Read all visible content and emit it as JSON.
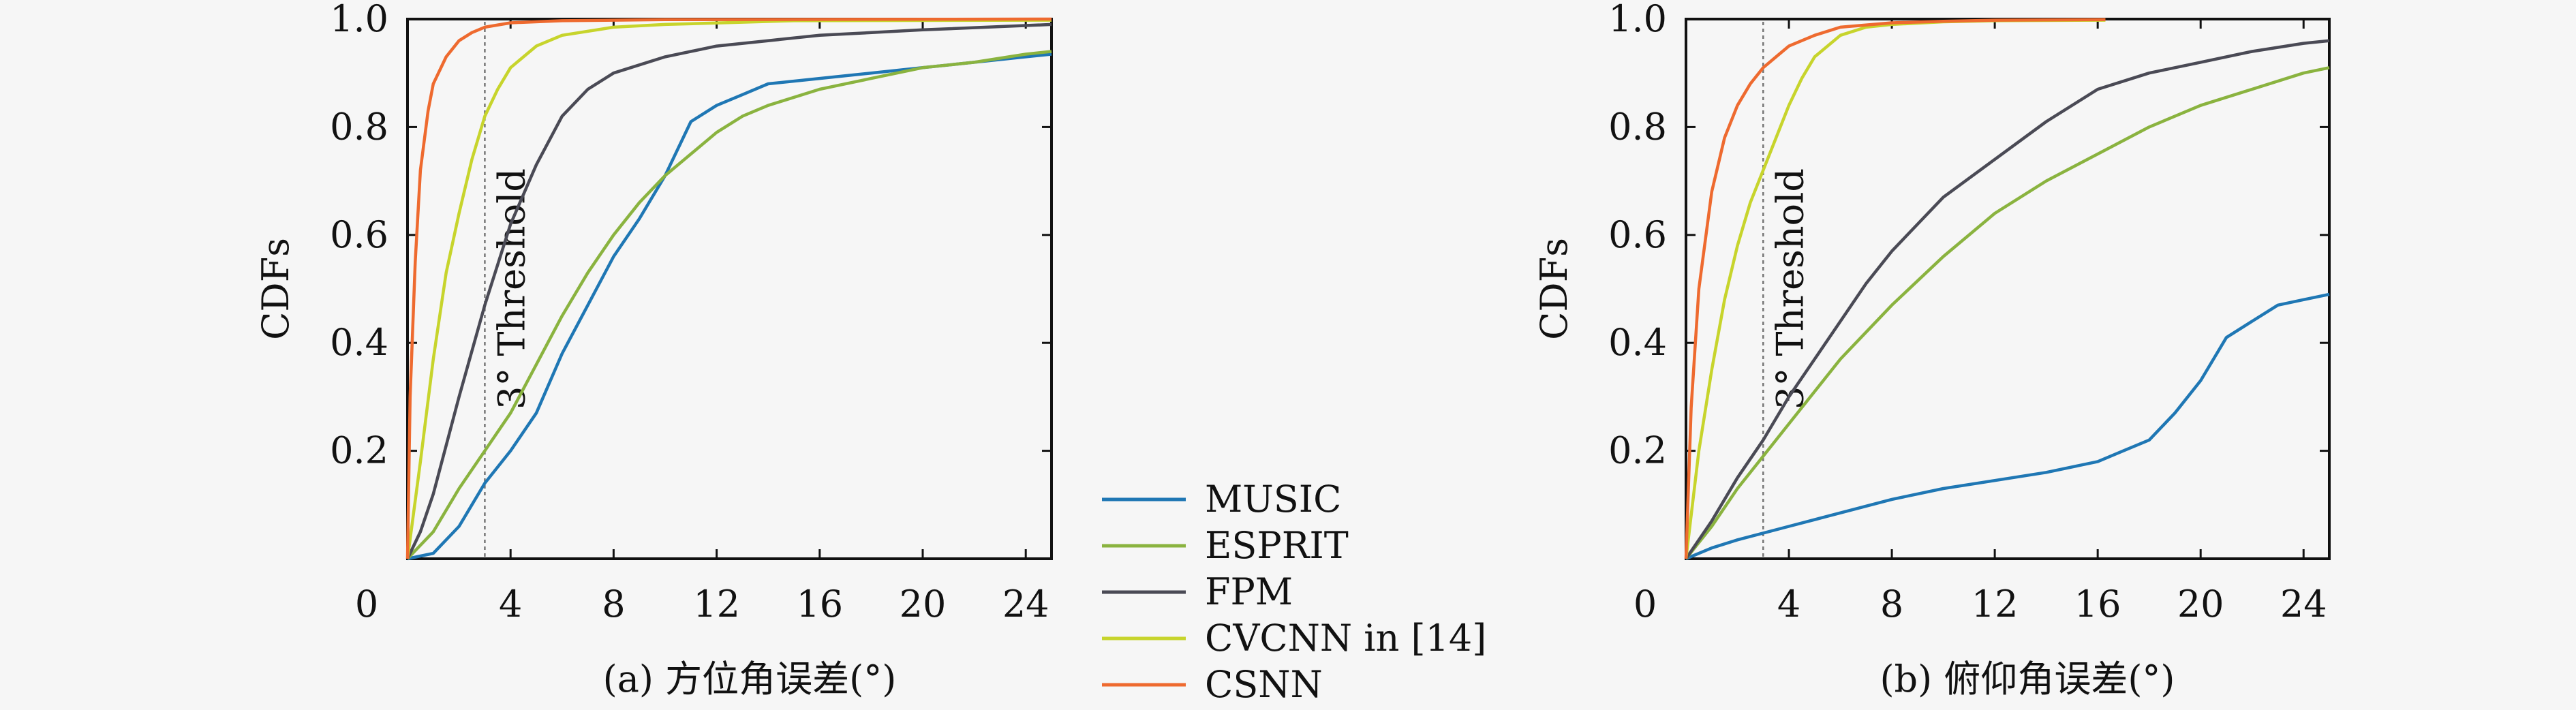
{
  "chart_data": [
    {
      "type": "line",
      "panel_caption": "(a) 方位角误差(°)",
      "xlabel": "",
      "ylabel": "CDFs",
      "annotation": "3° Threshold",
      "threshold_x": 3,
      "xlim": [
        0,
        25
      ],
      "ylim": [
        0,
        1
      ],
      "x_ticks": [
        "0",
        "4",
        "8",
        "12",
        "16",
        "20",
        "24"
      ],
      "y_ticks": [
        "0.2",
        "0.4",
        "0.6",
        "0.8",
        "1.0"
      ],
      "grid": false,
      "series": [
        {
          "name": "MUSIC",
          "color": "#1f77b4",
          "points": [
            [
              0,
              0
            ],
            [
              1,
              0.01
            ],
            [
              2,
              0.06
            ],
            [
              3,
              0.14
            ],
            [
              4,
              0.2
            ],
            [
              5,
              0.27
            ],
            [
              6,
              0.38
            ],
            [
              7,
              0.47
            ],
            [
              8,
              0.56
            ],
            [
              9,
              0.63
            ],
            [
              10,
              0.71
            ],
            [
              11,
              0.81
            ],
            [
              12,
              0.84
            ],
            [
              13,
              0.86
            ],
            [
              14,
              0.88
            ],
            [
              16,
              0.89
            ],
            [
              18,
              0.9
            ],
            [
              20,
              0.91
            ],
            [
              22,
              0.92
            ],
            [
              24,
              0.93
            ],
            [
              25,
              0.935
            ]
          ]
        },
        {
          "name": "ESPRIT",
          "color": "#8ab33f",
          "points": [
            [
              0,
              0
            ],
            [
              1,
              0.05
            ],
            [
              2,
              0.13
            ],
            [
              3,
              0.2
            ],
            [
              4,
              0.27
            ],
            [
              5,
              0.36
            ],
            [
              6,
              0.45
            ],
            [
              7,
              0.53
            ],
            [
              8,
              0.6
            ],
            [
              9,
              0.66
            ],
            [
              10,
              0.71
            ],
            [
              11,
              0.75
            ],
            [
              12,
              0.79
            ],
            [
              13,
              0.82
            ],
            [
              14,
              0.84
            ],
            [
              16,
              0.87
            ],
            [
              18,
              0.89
            ],
            [
              20,
              0.91
            ],
            [
              22,
              0.92
            ],
            [
              24,
              0.935
            ],
            [
              25,
              0.94
            ]
          ]
        },
        {
          "name": "FPM",
          "color": "#4a4a55",
          "points": [
            [
              0,
              0
            ],
            [
              0.5,
              0.05
            ],
            [
              1,
              0.12
            ],
            [
              2,
              0.3
            ],
            [
              3,
              0.47
            ],
            [
              4,
              0.62
            ],
            [
              5,
              0.73
            ],
            [
              6,
              0.82
            ],
            [
              7,
              0.87
            ],
            [
              8,
              0.9
            ],
            [
              10,
              0.93
            ],
            [
              12,
              0.95
            ],
            [
              14,
              0.96
            ],
            [
              16,
              0.97
            ],
            [
              20,
              0.98
            ],
            [
              25,
              0.99
            ]
          ]
        },
        {
          "name": "CVCNN in [14]",
          "color": "#c7d42c",
          "points": [
            [
              0,
              0
            ],
            [
              0.5,
              0.18
            ],
            [
              1,
              0.37
            ],
            [
              1.5,
              0.53
            ],
            [
              2,
              0.64
            ],
            [
              2.5,
              0.74
            ],
            [
              3,
              0.82
            ],
            [
              3.5,
              0.87
            ],
            [
              4,
              0.91
            ],
            [
              5,
              0.95
            ],
            [
              6,
              0.97
            ],
            [
              8,
              0.985
            ],
            [
              10,
              0.99
            ],
            [
              15,
              0.997
            ],
            [
              25,
              0.998
            ]
          ]
        },
        {
          "name": "CSNN",
          "color": "#ee6a2f",
          "points": [
            [
              0,
              0
            ],
            [
              0.1,
              0.3
            ],
            [
              0.3,
              0.55
            ],
            [
              0.5,
              0.72
            ],
            [
              0.8,
              0.83
            ],
            [
              1,
              0.88
            ],
            [
              1.5,
              0.93
            ],
            [
              2,
              0.96
            ],
            [
              2.5,
              0.975
            ],
            [
              3,
              0.985
            ],
            [
              4,
              0.993
            ],
            [
              6,
              0.997
            ],
            [
              10,
              0.999
            ],
            [
              25,
              1.0
            ]
          ]
        }
      ]
    },
    {
      "type": "line",
      "panel_caption": "(b) 俯仰角误差(°)",
      "xlabel": "",
      "ylabel": "CDFs",
      "annotation": "3° Threshold",
      "threshold_x": 3,
      "xlim": [
        0,
        25
      ],
      "ylim": [
        0,
        1
      ],
      "x_ticks": [
        "0",
        "4",
        "8",
        "12",
        "16",
        "20",
        "24"
      ],
      "y_ticks": [
        "0.2",
        "0.4",
        "0.6",
        "0.8",
        "1.0"
      ],
      "grid": false,
      "series": [
        {
          "name": "MUSIC",
          "color": "#1f77b4",
          "points": [
            [
              0,
              0
            ],
            [
              1,
              0.02
            ],
            [
              2,
              0.035
            ],
            [
              4,
              0.06
            ],
            [
              6,
              0.085
            ],
            [
              8,
              0.11
            ],
            [
              10,
              0.13
            ],
            [
              12,
              0.145
            ],
            [
              14,
              0.16
            ],
            [
              16,
              0.18
            ],
            [
              17,
              0.2
            ],
            [
              18,
              0.22
            ],
            [
              19,
              0.27
            ],
            [
              20,
              0.33
            ],
            [
              21,
              0.41
            ],
            [
              22,
              0.44
            ],
            [
              23,
              0.47
            ],
            [
              24,
              0.48
            ],
            [
              25,
              0.49
            ]
          ]
        },
        {
          "name": "ESPRIT",
          "color": "#8ab33f",
          "points": [
            [
              0,
              0
            ],
            [
              1,
              0.06
            ],
            [
              2,
              0.13
            ],
            [
              3,
              0.19
            ],
            [
              4,
              0.25
            ],
            [
              5,
              0.31
            ],
            [
              6,
              0.37
            ],
            [
              7,
              0.42
            ],
            [
              8,
              0.47
            ],
            [
              10,
              0.56
            ],
            [
              12,
              0.64
            ],
            [
              14,
              0.7
            ],
            [
              16,
              0.75
            ],
            [
              18,
              0.8
            ],
            [
              20,
              0.84
            ],
            [
              22,
              0.87
            ],
            [
              24,
              0.9
            ],
            [
              25,
              0.91
            ]
          ]
        },
        {
          "name": "FPM",
          "color": "#4a4a55",
          "points": [
            [
              0,
              0
            ],
            [
              1,
              0.07
            ],
            [
              2,
              0.15
            ],
            [
              3,
              0.22
            ],
            [
              4,
              0.3
            ],
            [
              5,
              0.37
            ],
            [
              6,
              0.44
            ],
            [
              7,
              0.51
            ],
            [
              8,
              0.57
            ],
            [
              9,
              0.62
            ],
            [
              10,
              0.67
            ],
            [
              12,
              0.74
            ],
            [
              14,
              0.81
            ],
            [
              16,
              0.87
            ],
            [
              18,
              0.9
            ],
            [
              20,
              0.92
            ],
            [
              22,
              0.94
            ],
            [
              24,
              0.955
            ],
            [
              25,
              0.96
            ]
          ]
        },
        {
          "name": "CVCNN in [14]",
          "color": "#c7d42c",
          "points": [
            [
              0,
              0
            ],
            [
              0.5,
              0.2
            ],
            [
              1,
              0.35
            ],
            [
              1.5,
              0.48
            ],
            [
              2,
              0.58
            ],
            [
              2.5,
              0.66
            ],
            [
              3,
              0.72
            ],
            [
              3.5,
              0.78
            ],
            [
              4,
              0.84
            ],
            [
              4.5,
              0.89
            ],
            [
              5,
              0.93
            ],
            [
              6,
              0.97
            ],
            [
              7,
              0.985
            ],
            [
              8,
              0.99
            ],
            [
              10,
              0.995
            ],
            [
              12,
              0.997
            ],
            [
              16.3,
              0.998
            ]
          ]
        },
        {
          "name": "CSNN",
          "color": "#ee6a2f",
          "points": [
            [
              0,
              0
            ],
            [
              0.2,
              0.28
            ],
            [
              0.5,
              0.5
            ],
            [
              1,
              0.68
            ],
            [
              1.5,
              0.78
            ],
            [
              2,
              0.84
            ],
            [
              2.5,
              0.88
            ],
            [
              3,
              0.91
            ],
            [
              3.5,
              0.93
            ],
            [
              4,
              0.95
            ],
            [
              5,
              0.97
            ],
            [
              6,
              0.985
            ],
            [
              8,
              0.993
            ],
            [
              10,
              0.996
            ],
            [
              12,
              0.998
            ],
            [
              16.3,
              0.999
            ]
          ]
        }
      ]
    }
  ],
  "legend": {
    "placement": "between-panels",
    "entries": [
      {
        "name": "MUSIC",
        "color": "#1f77b4"
      },
      {
        "name": "ESPRIT",
        "color": "#8ab33f"
      },
      {
        "name": "FPM",
        "color": "#4a4a55"
      },
      {
        "name": "CVCNN in [14]",
        "color": "#c7d42c"
      },
      {
        "name": "CSNN",
        "color": "#ee6a2f"
      }
    ]
  }
}
